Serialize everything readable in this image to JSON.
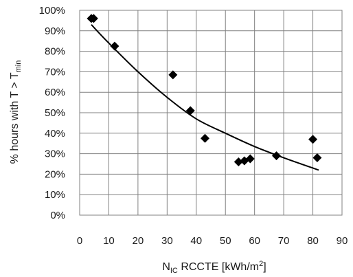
{
  "chart_data": {
    "type": "scatter",
    "xlabel": {
      "main": "N",
      "sub": "IC",
      "rest": " RCCTE [kWh/m",
      "sup": "2",
      "end": "]"
    },
    "ylabel": {
      "main": "% hours with T > T",
      "sub": "min"
    },
    "xlim": [
      0,
      90
    ],
    "ylim": [
      0,
      100
    ],
    "x_ticks": [
      "0",
      "10",
      "20",
      "30",
      "40",
      "50",
      "60",
      "70",
      "80",
      "90"
    ],
    "y_ticks": [
      "0%",
      "10%",
      "20%",
      "30%",
      "40%",
      "50%",
      "60%",
      "70%",
      "80%",
      "90%",
      "100%"
    ],
    "grid": true,
    "series": [
      {
        "marker": "diamond",
        "color": "#000000",
        "points": [
          {
            "x": 4,
            "y": 96
          },
          {
            "x": 4.8,
            "y": 96
          },
          {
            "x": 12,
            "y": 82.5
          },
          {
            "x": 32,
            "y": 68.5
          },
          {
            "x": 38,
            "y": 51
          },
          {
            "x": 43,
            "y": 37.5
          },
          {
            "x": 54.5,
            "y": 26
          },
          {
            "x": 56.5,
            "y": 26.5
          },
          {
            "x": 58.5,
            "y": 27.5
          },
          {
            "x": 67.5,
            "y": 29
          },
          {
            "x": 80,
            "y": 37
          },
          {
            "x": 81.5,
            "y": 28
          }
        ]
      }
    ],
    "trendline": {
      "color": "#000000",
      "points": [
        {
          "x": 4,
          "y": 93
        },
        {
          "x": 10,
          "y": 84
        },
        {
          "x": 20,
          "y": 70
        },
        {
          "x": 30,
          "y": 57.5
        },
        {
          "x": 40,
          "y": 47
        },
        {
          "x": 50,
          "y": 40
        },
        {
          "x": 60,
          "y": 33.5
        },
        {
          "x": 70,
          "y": 28
        },
        {
          "x": 82,
          "y": 22
        }
      ]
    }
  }
}
